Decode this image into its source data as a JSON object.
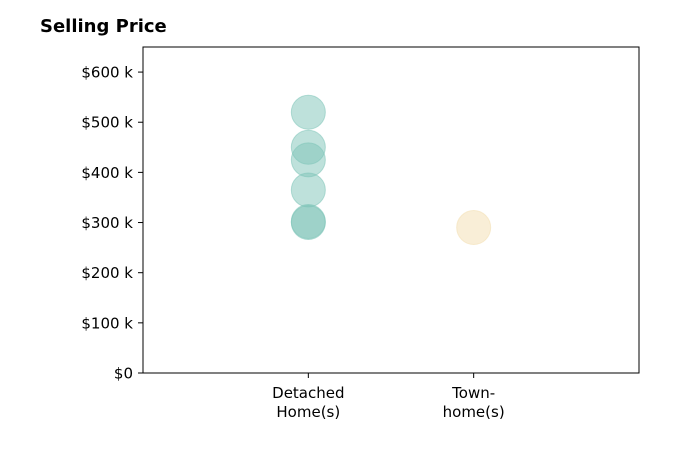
{
  "chart_data": {
    "type": "scatter",
    "title": "Selling Price",
    "xlabel": "",
    "ylabel": "",
    "categories": [
      [
        "Detached",
        "Home(s)"
      ],
      [
        "Town-",
        "home(s)"
      ]
    ],
    "yticks": [
      0,
      100,
      200,
      300,
      400,
      500,
      600
    ],
    "ytick_labels": [
      "$0",
      "$100 k",
      "$200 k",
      "$300 k",
      "$400 k",
      "$500 k",
      "$600 k"
    ],
    "ylim": [
      0,
      650
    ],
    "xlim": [
      -1,
      2
    ],
    "grid": false,
    "series": [
      {
        "category_index": 0,
        "color": "#7ec4b8",
        "values": [
          520,
          450,
          425,
          365,
          302,
          300
        ]
      },
      {
        "category_index": 1,
        "color": "#f3deb0",
        "values": [
          290
        ]
      }
    ]
  }
}
